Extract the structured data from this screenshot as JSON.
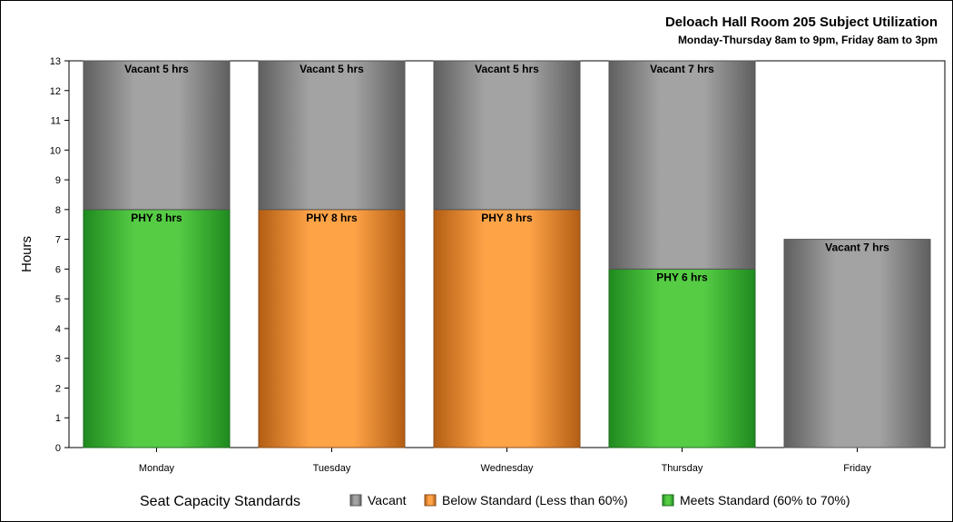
{
  "chart_data": {
    "type": "bar",
    "stacked": true,
    "title": "Deloach Hall Room 205 Subject Utilization",
    "subtitle": "Monday-Thursday 8am to 9pm, Friday 8am to 3pm",
    "ylabel": "Hours",
    "xlabel": "",
    "ylim": [
      0,
      13
    ],
    "yticks": [
      0,
      1,
      2,
      3,
      4,
      5,
      6,
      7,
      8,
      9,
      10,
      11,
      12,
      13
    ],
    "categories": [
      "Monday",
      "Tuesday",
      "Wednesday",
      "Thursday",
      "Friday"
    ],
    "bars": [
      {
        "category": "Monday",
        "segments": [
          {
            "status": "meets",
            "value": 8,
            "label": "PHY 8 hrs"
          },
          {
            "status": "vacant",
            "value": 5,
            "label": "Vacant 5 hrs"
          }
        ]
      },
      {
        "category": "Tuesday",
        "segments": [
          {
            "status": "below",
            "value": 8,
            "label": "PHY 8 hrs"
          },
          {
            "status": "vacant",
            "value": 5,
            "label": "Vacant 5 hrs"
          }
        ]
      },
      {
        "category": "Wednesday",
        "segments": [
          {
            "status": "below",
            "value": 8,
            "label": "PHY 8 hrs"
          },
          {
            "status": "vacant",
            "value": 5,
            "label": "Vacant 5 hrs"
          }
        ]
      },
      {
        "category": "Thursday",
        "segments": [
          {
            "status": "meets",
            "value": 6,
            "label": "PHY 6 hrs"
          },
          {
            "status": "vacant",
            "value": 7,
            "label": "Vacant 7 hrs"
          }
        ]
      },
      {
        "category": "Friday",
        "segments": [
          {
            "status": "vacant",
            "value": 7,
            "label": "Vacant 7 hrs"
          }
        ]
      }
    ],
    "legend": {
      "title": "Seat Capacity Standards",
      "position": "bottom",
      "entries": [
        {
          "key": "vacant",
          "label": "Vacant"
        },
        {
          "key": "below",
          "label": "Below Standard (Less than 60%)"
        },
        {
          "key": "meets",
          "label": "Meets Standard (60% to 70%)"
        }
      ]
    },
    "colors": {
      "vacant": {
        "edge": "#5f5f5f",
        "mid": "#a3a3a3",
        "stroke": "#555555"
      },
      "below": {
        "edge": "#b35e14",
        "mid": "#ffa347",
        "stroke": "#8a4f1e"
      },
      "meets": {
        "edge": "#1f8a1f",
        "mid": "#55cc44",
        "stroke": "#1f6a1f"
      }
    }
  }
}
